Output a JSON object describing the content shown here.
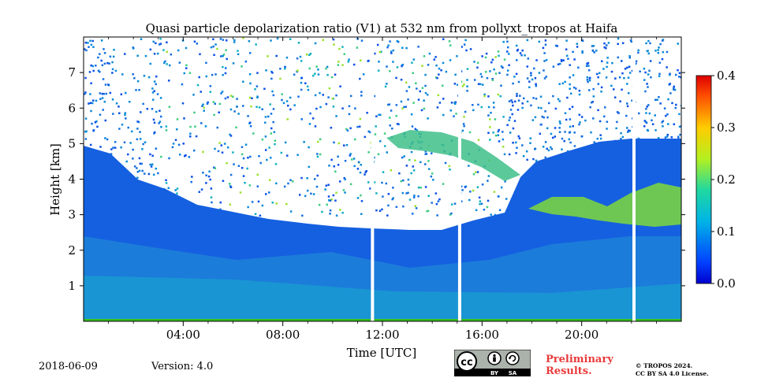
{
  "chart_data": {
    "type": "heatmap",
    "title": "Quasi particle depolarization ratio (V1) at 532 nm from pollyxt_tropos at Haifa",
    "xlabel": "Time [UTC]",
    "ylabel": "Height [km]",
    "x_ticks": [
      "04:00",
      "08:00",
      "12:00",
      "16:00",
      "20:00"
    ],
    "x_tick_hours": [
      4,
      8,
      12,
      16,
      20
    ],
    "xlim_hours": [
      0,
      24
    ],
    "y_ticks": [
      "1",
      "2",
      "3",
      "4",
      "5",
      "6",
      "7"
    ],
    "y_tick_values": [
      1,
      2,
      3,
      4,
      5,
      6,
      7
    ],
    "ylim": [
      0,
      8
    ],
    "colorbar": {
      "ticks": [
        "0.0",
        "0.1",
        "0.2",
        "0.3",
        "0.4"
      ],
      "tick_values": [
        0.0,
        0.1,
        0.2,
        0.3,
        0.4
      ],
      "range": [
        0.0,
        0.4
      ],
      "colormap": "jet"
    },
    "data_gaps_hours": [
      11.6,
      15.1,
      22.1
    ],
    "layers": [
      {
        "time_hours": [
          0,
          4,
          8,
          11.5,
          16,
          17,
          20,
          24
        ],
        "top_km": [
          5.8,
          3.6,
          2.8,
          2.6,
          2.6,
          5.1,
          5.3,
          5.3
        ],
        "value": 0.05
      },
      {
        "time_hours": [
          18,
          20,
          22,
          23.5
        ],
        "center_km": [
          3.2,
          3.1,
          3.3,
          3.3
        ],
        "value": 0.17
      },
      {
        "time_hours": [
          12.5,
          14,
          15.5
        ],
        "center_km": [
          5.2,
          5.0,
          4.6
        ],
        "value": 0.15
      }
    ]
  },
  "footer": {
    "date": "2018-06-09",
    "version": "Version: 4.0",
    "preliminary_line1": "Preliminary",
    "preliminary_line2": "Results.",
    "copyright_line1": "© TROPOS 2024.",
    "copyright_line2": "CC BY SA 4.0 License.",
    "license_badge_by": "BY",
    "license_badge_sa": "SA"
  },
  "colors": {
    "low": "#0a50e6",
    "mid": "#0aaad2",
    "high": "#9be12d",
    "max": "#e60000"
  }
}
